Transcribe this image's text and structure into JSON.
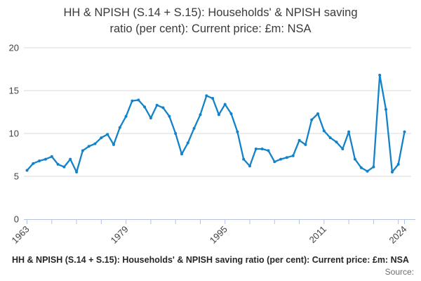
{
  "title": {
    "line1": "HH & NPISH (S.14 + S.15): Households' & NPISH saving",
    "line2": "ratio (per cent): Current price: £m: NSA"
  },
  "footer": {
    "caption": "HH & NPISH (S.14 + S.15): Households' & NPISH saving ratio (per cent): Current price: £m: NSA",
    "source_label": "Source:"
  },
  "colors": {
    "line": "#1382c8",
    "marker": "#1382c8",
    "gridline": "#d9d9d9",
    "axis": "#b3c3de",
    "tick_text": "#414042",
    "title_text": "#3a3a3a"
  },
  "chart_data": {
    "type": "line",
    "title": "HH & NPISH (S.14 + S.15): Households' & NPISH saving ratio (per cent): Current price: £m: NSA",
    "ylabel": "",
    "xlabel": "",
    "ylim": [
      0,
      20
    ],
    "yticks": [
      0,
      5,
      10,
      15,
      20
    ],
    "xtick_labels": [
      1963,
      1979,
      1995,
      2011,
      2024
    ],
    "xticks_every": 4,
    "grid": "horizontal",
    "legend": "none",
    "marker": "circle",
    "years": [
      1963,
      1964,
      1965,
      1966,
      1967,
      1968,
      1969,
      1970,
      1971,
      1972,
      1973,
      1974,
      1975,
      1976,
      1977,
      1978,
      1979,
      1980,
      1981,
      1982,
      1983,
      1984,
      1985,
      1986,
      1987,
      1988,
      1989,
      1990,
      1991,
      1992,
      1993,
      1994,
      1995,
      1996,
      1997,
      1998,
      1999,
      2000,
      2001,
      2002,
      2003,
      2004,
      2005,
      2006,
      2007,
      2008,
      2009,
      2010,
      2011,
      2012,
      2013,
      2014,
      2015,
      2016,
      2017,
      2018,
      2019,
      2020,
      2021,
      2022,
      2023,
      2024
    ],
    "values": [
      5.7,
      6.5,
      6.8,
      7.0,
      7.3,
      6.4,
      6.1,
      7.0,
      5.5,
      8.0,
      8.5,
      8.8,
      9.5,
      9.9,
      8.7,
      10.7,
      12.0,
      13.8,
      13.9,
      13.1,
      11.8,
      13.3,
      13.0,
      12.0,
      10.0,
      7.6,
      8.9,
      10.6,
      12.2,
      14.4,
      14.1,
      12.2,
      13.4,
      12.3,
      10.2,
      7.0,
      6.2,
      8.2,
      8.2,
      8.0,
      6.7,
      7.0,
      7.2,
      7.4,
      9.2,
      8.7,
      11.6,
      12.3,
      10.3,
      9.5,
      9.0,
      8.2,
      10.2,
      7.0,
      6.0,
      5.6,
      6.1,
      16.8,
      12.8,
      5.5,
      6.4,
      10.2
    ]
  }
}
